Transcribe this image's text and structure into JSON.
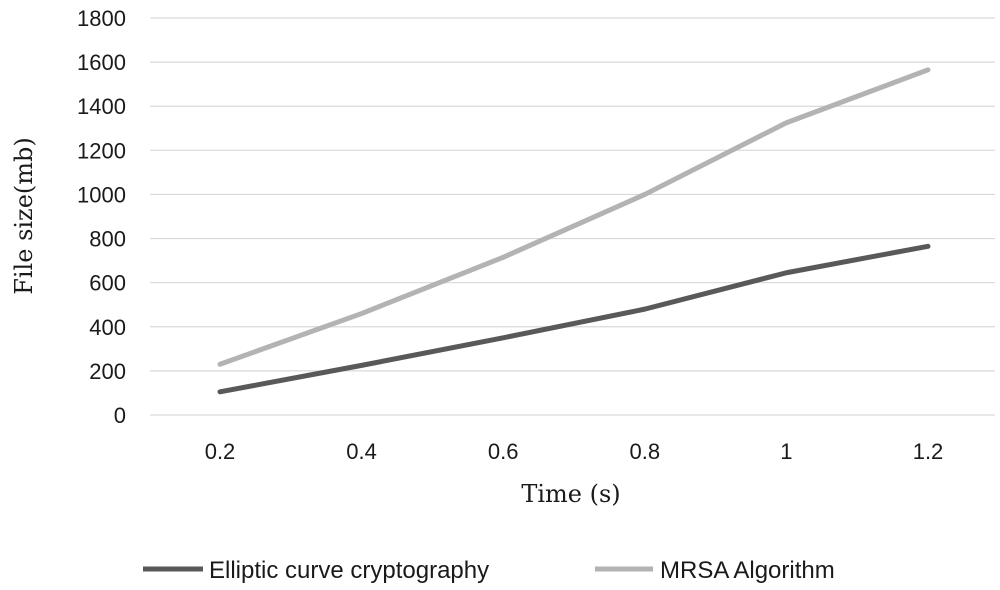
{
  "chart_data": {
    "type": "line",
    "title": "",
    "xlabel": "Time (s)",
    "ylabel": "File size(mb)",
    "categories": [
      "0.2",
      "0.4",
      "0.6",
      "0.8",
      "1",
      "1.2"
    ],
    "ylim": [
      0,
      1800
    ],
    "yticks": [
      "0",
      "200",
      "400",
      "600",
      "800",
      "1000",
      "1200",
      "1400",
      "1600",
      "1800"
    ],
    "grid": "horizontal",
    "legend_position": "bottom",
    "series": [
      {
        "name": "Elliptic curve cryptography",
        "color": "#595959",
        "values": [
          105,
          225,
          350,
          480,
          645,
          765
        ]
      },
      {
        "name": "MRSA Algorithm",
        "color": "#b3b3b3",
        "values": [
          230,
          460,
          715,
          1000,
          1325,
          1565
        ]
      }
    ]
  }
}
